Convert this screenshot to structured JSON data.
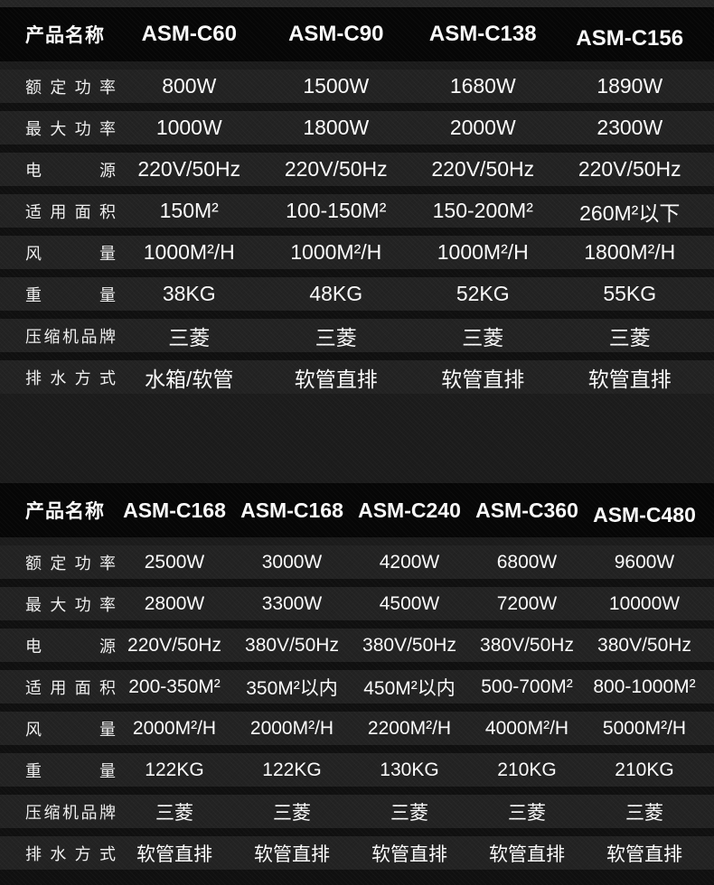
{
  "colors": {
    "page_background": "#1c1c1c",
    "header_background": "#060606",
    "row_band": "#232323",
    "row_gap": "#101010",
    "text": "#ffffff"
  },
  "tables": [
    {
      "title_label": "产品名称",
      "models": [
        "ASM-C60",
        "ASM-C90",
        "ASM-C138",
        "ASM-C156"
      ],
      "rows": [
        {
          "label": "额定功率",
          "values": [
            "800W",
            "1500W",
            "1680W",
            "1890W"
          ]
        },
        {
          "label": "最大功率",
          "values": [
            "1000W",
            "1800W",
            "2000W",
            "2300W"
          ]
        },
        {
          "label": "电源",
          "values": [
            "220V/50Hz",
            "220V/50Hz",
            "220V/50Hz",
            "220V/50Hz"
          ]
        },
        {
          "label": "适用面积",
          "values": [
            "150M²",
            "100-150M²",
            "150-200M²",
            "260M²以下"
          ]
        },
        {
          "label": "风量",
          "values": [
            "1000M²/H",
            "1000M²/H",
            "1000M²/H",
            "1800M²/H"
          ]
        },
        {
          "label": "重量",
          "values": [
            "38KG",
            "48KG",
            "52KG",
            "55KG"
          ]
        },
        {
          "label": "压缩机品牌",
          "values": [
            "三菱",
            "三菱",
            "三菱",
            "三菱"
          ]
        },
        {
          "label": "排水方式",
          "values": [
            "水箱/软管",
            "软管直排",
            "软管直排",
            "软管直排"
          ]
        }
      ]
    },
    {
      "title_label": "产品名称",
      "models": [
        "ASM-C168",
        "ASM-C168",
        "ASM-C240",
        "ASM-C360",
        "ASM-C480"
      ],
      "rows": [
        {
          "label": "额定功率",
          "values": [
            "2500W",
            "3000W",
            "4200W",
            "6800W",
            "9600W"
          ]
        },
        {
          "label": "最大功率",
          "values": [
            "2800W",
            "3300W",
            "4500W",
            "7200W",
            "10000W"
          ]
        },
        {
          "label": "电源",
          "values": [
            "220V/50Hz",
            "380V/50Hz",
            "380V/50Hz",
            "380V/50Hz",
            "380V/50Hz"
          ]
        },
        {
          "label": "适用面积",
          "values": [
            "200-350M²",
            "350M²以内",
            "450M²以内",
            "500-700M²",
            "800-1000M²"
          ]
        },
        {
          "label": "风量",
          "values": [
            "2000M²/H",
            "2000M²/H",
            "2200M²/H",
            "4000M²/H",
            "5000M²/H"
          ]
        },
        {
          "label": "重量",
          "values": [
            "122KG",
            "122KG",
            "130KG",
            "210KG",
            "210KG"
          ]
        },
        {
          "label": "压缩机品牌",
          "values": [
            "三菱",
            "三菱",
            "三菱",
            "三菱",
            "三菱"
          ]
        },
        {
          "label": "排水方式",
          "values": [
            "软管直排",
            "软管直排",
            "软管直排",
            "软管直排",
            "软管直排"
          ]
        }
      ]
    }
  ]
}
